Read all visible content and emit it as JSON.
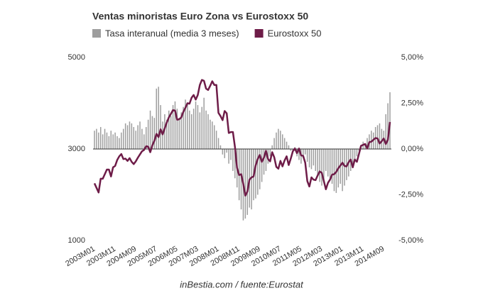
{
  "chart_data": {
    "type": "combo",
    "title": "Ventas minoristas Euro Zona vs Eurostoxx 50",
    "source": "inBestia.com / fuente:Eurostat",
    "categories": [
      "2003M01",
      null,
      null,
      null,
      null,
      null,
      null,
      null,
      null,
      null,
      "2003M11",
      null,
      null,
      null,
      null,
      null,
      null,
      null,
      null,
      null,
      "2004M09",
      null,
      null,
      null,
      null,
      null,
      null,
      null,
      null,
      null,
      "2005M07",
      null,
      null,
      null,
      null,
      null,
      null,
      null,
      null,
      null,
      "2006M05",
      null,
      null,
      null,
      null,
      null,
      null,
      null,
      null,
      null,
      "2007M03",
      null,
      null,
      null,
      null,
      null,
      null,
      null,
      null,
      null,
      "2008M01",
      null,
      null,
      null,
      null,
      null,
      null,
      null,
      null,
      null,
      "2008M11",
      null,
      null,
      null,
      null,
      null,
      null,
      null,
      null,
      null,
      "2009M09",
      null,
      null,
      null,
      null,
      null,
      null,
      null,
      null,
      null,
      "2010M07",
      null,
      null,
      null,
      null,
      null,
      null,
      null,
      null,
      null,
      "2011M05",
      null,
      null,
      null,
      null,
      null,
      null,
      null,
      null,
      null,
      "2012M03",
      null,
      null,
      null,
      null,
      null,
      null,
      null,
      null,
      null,
      "2013M01",
      null,
      null,
      null,
      null,
      null,
      null,
      null,
      null,
      null,
      "2013M11",
      null,
      null,
      null,
      null,
      null,
      null,
      null,
      null,
      null,
      "2014M09",
      null,
      null,
      null
    ],
    "series": [
      {
        "name": "Tasa interanual (media 3 meses)",
        "type": "bar",
        "axis": "y2",
        "color": "#9e9e9e",
        "values": [
          1.0,
          1.1,
          0.9,
          1.2,
          0.8,
          1.1,
          0.9,
          0.7,
          1.0,
          0.8,
          0.9,
          0.7,
          0.6,
          0.9,
          1.1,
          1.4,
          1.3,
          1.5,
          1.4,
          1.2,
          1.0,
          1.3,
          1.5,
          1.1,
          0.8,
          1.2,
          1.6,
          2.1,
          1.8,
          1.7,
          3.3,
          3.4,
          2.4,
          1.5,
          1.9,
          1.6,
          2.1,
          1.8,
          2.4,
          2.6,
          2.2,
          1.7,
          2.0,
          2.3,
          2.7,
          2.5,
          2.1,
          1.9,
          2.2,
          2.6,
          2.4,
          2.0,
          2.3,
          2.8,
          2.1,
          1.9,
          1.6,
          1.5,
          1.3,
          1.0,
          0.6,
          0.2,
          -0.3,
          -0.5,
          -0.2,
          -0.8,
          -0.6,
          -1.2,
          -1.6,
          -2.1,
          -2.8,
          -3.3,
          -3.9,
          -3.8,
          -3.6,
          -3.2,
          -3.3,
          -2.8,
          -2.7,
          -2.5,
          -2.2,
          -1.8,
          -1.4,
          -1.2,
          -0.8,
          -0.4,
          0.2,
          0.6,
          0.9,
          1.1,
          1.0,
          0.8,
          0.6,
          0.4,
          0.2,
          -0.1,
          -0.2,
          0.1,
          -0.4,
          -0.6,
          -0.8,
          -0.5,
          -0.3,
          -0.7,
          -1.0,
          -1.1,
          -0.9,
          -1.2,
          -1.5,
          -1.8,
          -2.0,
          -1.7,
          -1.2,
          -1.5,
          -1.6,
          -1.9,
          -2.3,
          -2.4,
          -2.1,
          -1.9,
          -2.3,
          -2.0,
          -1.7,
          -1.5,
          -1.2,
          -0.8,
          -0.6,
          -0.4,
          -0.1,
          0.2,
          0.4,
          0.3,
          0.6,
          0.8,
          1.0,
          0.9,
          1.2,
          1.3,
          1.4,
          1.1,
          1.0,
          1.9,
          2.5,
          3.1
        ]
      },
      {
        "name": "Eurostoxx 50",
        "type": "line",
        "axis": "y",
        "color": "#6e1c48",
        "values": [
          2250,
          2150,
          2050,
          2350,
          2350,
          2450,
          2550,
          2550,
          2400,
          2600,
          2630,
          2760,
          2840,
          2890,
          2780,
          2790,
          2740,
          2800,
          2720,
          2670,
          2730,
          2810,
          2880,
          2950,
          2980,
          3060,
          3050,
          2930,
          3080,
          3180,
          3330,
          3260,
          3430,
          3320,
          3450,
          3580,
          3690,
          3770,
          3850,
          3840,
          3640,
          3650,
          3690,
          3810,
          3900,
          4000,
          3990,
          4120,
          4180,
          4080,
          4180,
          4400,
          4510,
          4490,
          4320,
          4290,
          4380,
          4480,
          4400,
          4400,
          3790,
          3720,
          3630,
          3830,
          3780,
          3350,
          3370,
          3370,
          3040,
          2590,
          2430,
          2450,
          2240,
          1980,
          2070,
          2330,
          2380,
          2400,
          2640,
          2780,
          2870,
          2720,
          2810,
          2960,
          2780,
          2730,
          2930,
          2820,
          2610,
          2570,
          2740,
          2620,
          2750,
          2840,
          2650,
          2790,
          2950,
          3010,
          2910,
          3010,
          2860,
          2850,
          2700,
          2300,
          2180,
          2380,
          2330,
          2320,
          2420,
          2510,
          2480,
          2300,
          2120,
          2260,
          2330,
          2440,
          2450,
          2500,
          2580,
          2640,
          2700,
          2630,
          2620,
          2710,
          2770,
          2600,
          2770,
          2720,
          2890,
          3070,
          3090,
          3110,
          3010,
          3150,
          3160,
          3200,
          3240,
          3230,
          3120,
          3170,
          3230,
          3110,
          3200,
          3590
        ]
      }
    ],
    "ylim": [
      1000,
      5000
    ],
    "yticks": [
      1000,
      3000,
      5000
    ],
    "y2lim": [
      -5,
      5
    ],
    "y2ticks": [
      {
        "value": -5,
        "label": "-5,00%"
      },
      {
        "value": -2.5,
        "label": "-2,50%"
      },
      {
        "value": 0,
        "label": "0,00%"
      },
      {
        "value": 2.5,
        "label": "2,50%"
      },
      {
        "value": 5,
        "label": "5,00%"
      }
    ],
    "grid": false
  }
}
